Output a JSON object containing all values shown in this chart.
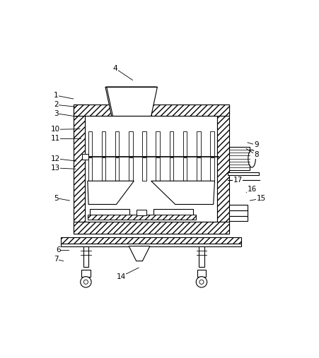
{
  "figsize": [
    4.51,
    5.07
  ],
  "dpi": 100,
  "bg": "#ffffff",
  "lc": "#000000",
  "ox": 0.13,
  "oy": 0.3,
  "ow": 0.62,
  "oh": 0.52,
  "wall": 0.048
}
